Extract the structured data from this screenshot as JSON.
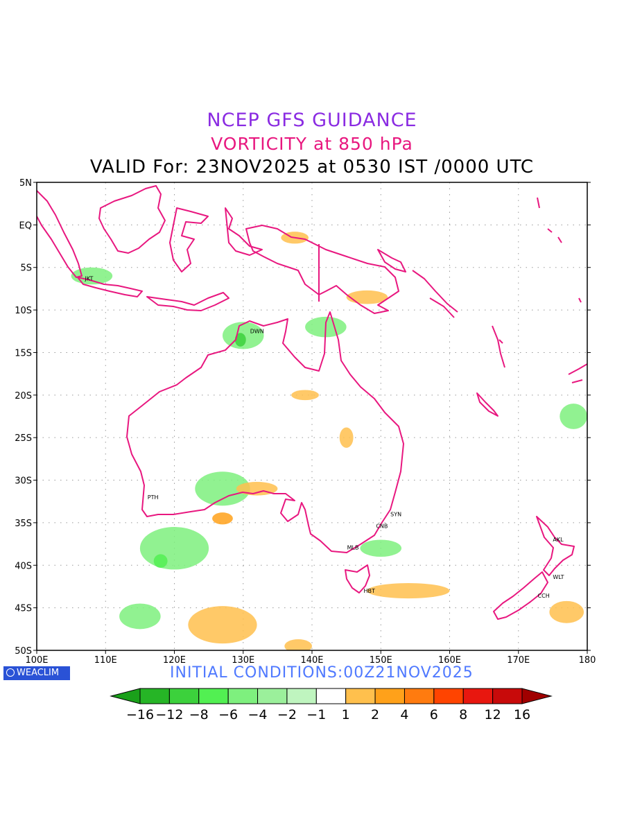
{
  "titles": {
    "line1": "NCEP GFS GUIDANCE",
    "line2": "VORTICITY at 850 hPa",
    "line3": "VALID For: 23NOV2025 at 0530 IST /0000 UTC"
  },
  "footer": {
    "badge": "WEACLIM",
    "initial": "INITIAL CONDITIONS:00Z21NOV2025"
  },
  "axes": {
    "lat_labels": [
      "5N",
      "EQ",
      "5S",
      "10S",
      "15S",
      "20S",
      "25S",
      "30S",
      "35S",
      "40S",
      "45S",
      "50S"
    ],
    "lat_values": [
      5,
      0,
      -5,
      -10,
      -15,
      -20,
      -25,
      -30,
      -35,
      -40,
      -45,
      -50
    ],
    "lon_labels": [
      "100E",
      "110E",
      "120E",
      "130E",
      "140E",
      "150E",
      "160E",
      "170E",
      "180"
    ],
    "lon_values": [
      100,
      110,
      120,
      130,
      140,
      150,
      160,
      170,
      180
    ],
    "lon_range": [
      100,
      180
    ],
    "lat_range": [
      -50,
      5
    ],
    "grid": true
  },
  "cities": [
    {
      "code": "JKT",
      "lon": 106.8,
      "lat": -6.2
    },
    {
      "code": "DWN",
      "lon": 130.8,
      "lat": -12.4
    },
    {
      "code": "PTH",
      "lon": 115.9,
      "lat": -31.9
    },
    {
      "code": "SYN",
      "lon": 151.2,
      "lat": -33.9
    },
    {
      "code": "CNB",
      "lon": 149.1,
      "lat": -35.3
    },
    {
      "code": "MLB",
      "lon": 144.9,
      "lat": -37.8
    },
    {
      "code": "HBT",
      "lon": 147.3,
      "lat": -42.9
    },
    {
      "code": "AKL",
      "lon": 174.8,
      "lat": -36.9
    },
    {
      "code": "WLT",
      "lon": 174.8,
      "lat": -41.3
    },
    {
      "code": "CCH",
      "lon": 172.6,
      "lat": -43.5
    }
  ],
  "colorbar": {
    "labels": [
      "-16",
      "-12",
      "-8",
      "-6",
      "-4",
      "-2",
      "-1",
      "1",
      "2",
      "4",
      "6",
      "8",
      "12",
      "16"
    ],
    "colors": [
      "#1aa01a",
      "#26b526",
      "#3cd13c",
      "#52f052",
      "#7ef07e",
      "#9bf09b",
      "#bff5bf",
      "#ffffff",
      "#ffc04d",
      "#ffa11a",
      "#ff7b0f",
      "#ff4400",
      "#e8170f",
      "#c80a0a",
      "#a00000"
    ]
  },
  "vorticity_areas": [
    {
      "sign": "neg",
      "level": 1,
      "lon": 130,
      "lat": -13,
      "rx": 3,
      "ry": 1.6
    },
    {
      "sign": "neg",
      "level": 3,
      "lon": 129.6,
      "lat": -13.5,
      "rx": 0.8,
      "ry": 0.8
    },
    {
      "sign": "neg",
      "level": 1,
      "lon": 127,
      "lat": -31,
      "rx": 4,
      "ry": 2
    },
    {
      "sign": "neg",
      "level": 1,
      "lon": 120,
      "lat": -38,
      "rx": 5,
      "ry": 2.5
    },
    {
      "sign": "neg",
      "level": 2,
      "lon": 118,
      "lat": -39.5,
      "rx": 1,
      "ry": 0.8
    },
    {
      "sign": "neg",
      "level": 1,
      "lon": 142,
      "lat": -12,
      "rx": 3,
      "ry": 1.2
    },
    {
      "sign": "neg",
      "level": 1,
      "lon": 178,
      "lat": -22.5,
      "rx": 2,
      "ry": 1.5
    },
    {
      "sign": "neg",
      "level": 1,
      "lon": 108,
      "lat": -6,
      "rx": 3,
      "ry": 1
    },
    {
      "sign": "neg",
      "level": 1,
      "lon": 115,
      "lat": -46,
      "rx": 3,
      "ry": 1.5
    },
    {
      "sign": "neg",
      "level": 1,
      "lon": 150,
      "lat": -38,
      "rx": 3,
      "ry": 1
    },
    {
      "sign": "pos",
      "level": 2,
      "lon": 127,
      "lat": -34.5,
      "rx": 1.5,
      "ry": 0.7
    },
    {
      "sign": "pos",
      "level": 1,
      "lon": 132,
      "lat": -31,
      "rx": 3,
      "ry": 0.8
    },
    {
      "sign": "pos",
      "level": 1,
      "lon": 127,
      "lat": -47,
      "rx": 5,
      "ry": 2.2
    },
    {
      "sign": "pos",
      "level": 1,
      "lon": 154,
      "lat": -43,
      "rx": 6,
      "ry": 0.9
    },
    {
      "sign": "pos",
      "level": 1,
      "lon": 177,
      "lat": -45.5,
      "rx": 2.5,
      "ry": 1.3
    },
    {
      "sign": "pos",
      "level": 1,
      "lon": 138,
      "lat": -49.5,
      "rx": 2,
      "ry": 0.8
    },
    {
      "sign": "pos",
      "level": 1,
      "lon": 148,
      "lat": -8.5,
      "rx": 3,
      "ry": 0.8
    },
    {
      "sign": "pos",
      "level": 1,
      "lon": 137.5,
      "lat": -1.5,
      "rx": 2,
      "ry": 0.7
    },
    {
      "sign": "pos",
      "level": 1,
      "lon": 145,
      "lat": -25,
      "rx": 1,
      "ry": 1.2
    },
    {
      "sign": "pos",
      "level": 1,
      "lon": 139,
      "lat": -20,
      "rx": 2,
      "ry": 0.6
    }
  ]
}
